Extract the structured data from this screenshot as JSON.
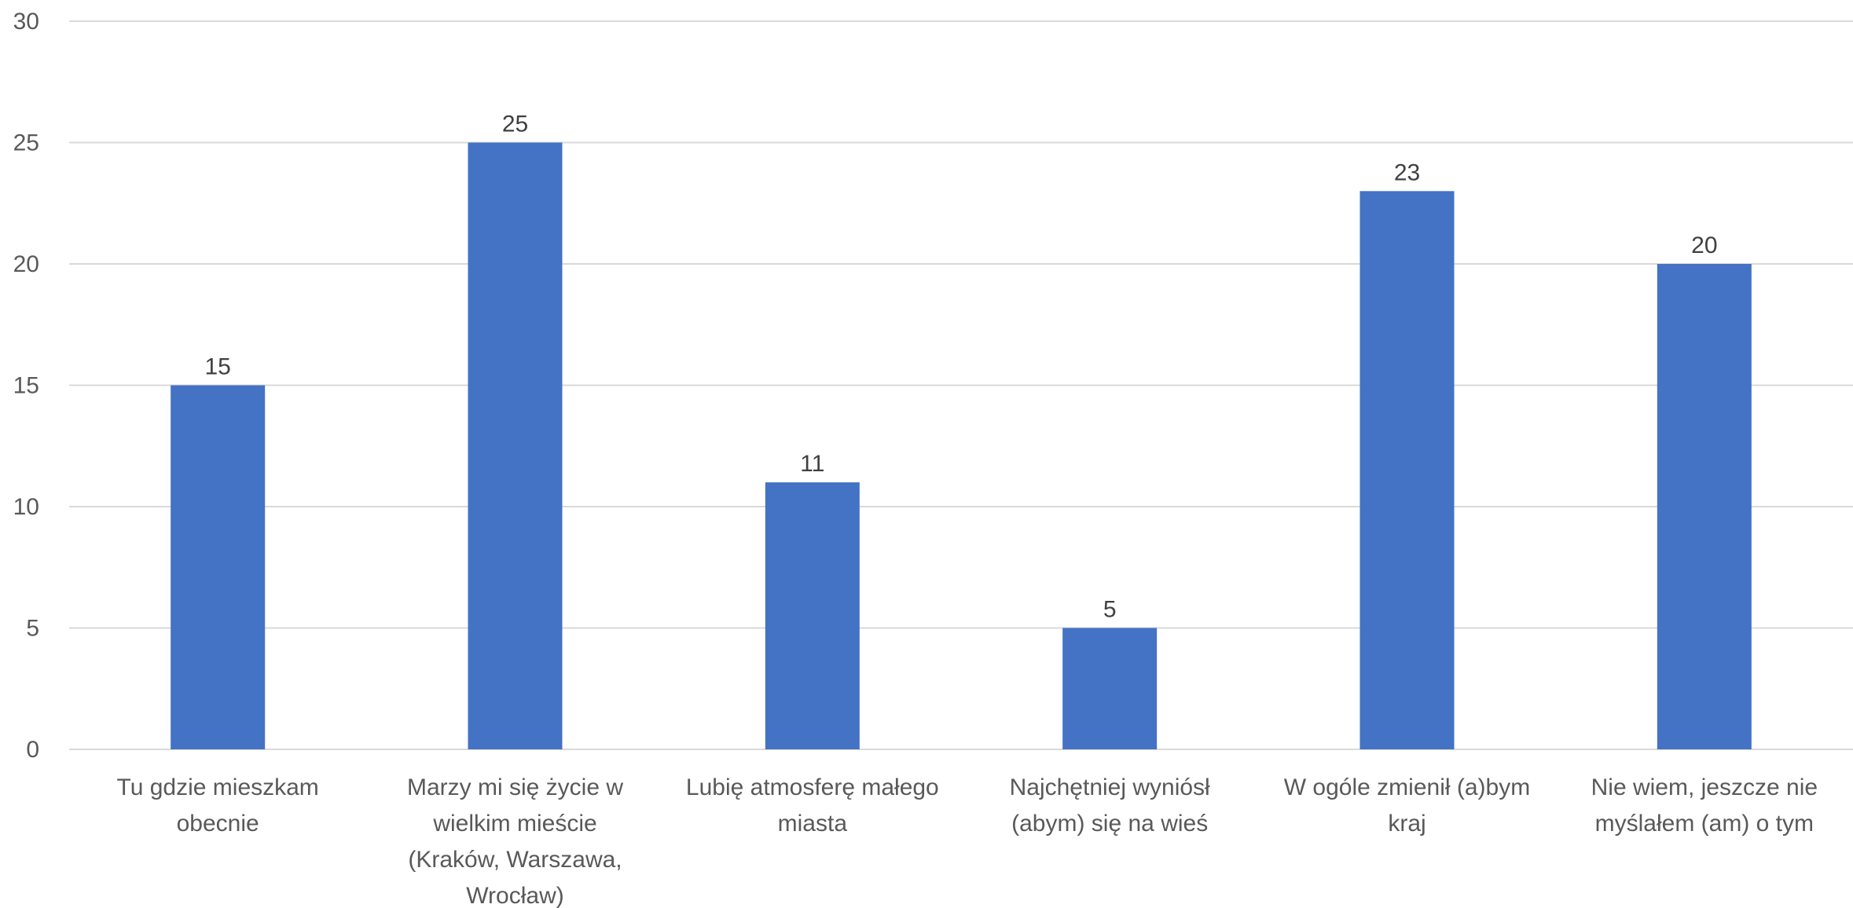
{
  "chart_data": {
    "type": "bar",
    "title": "",
    "xlabel": "",
    "ylabel": "",
    "ylim": [
      0,
      30
    ],
    "yticks": [
      0,
      5,
      10,
      15,
      20,
      25,
      30
    ],
    "grid": true,
    "legend": "none",
    "categories": [
      [
        "Tu gdzie mieszkam",
        "obecnie"
      ],
      [
        "Marzy mi się życie w",
        "wielkim mieście",
        "(Kraków, Warszawa,",
        "Wrocław)"
      ],
      [
        "Lubię atmosferę małego",
        "miasta"
      ],
      [
        "Najchętniej wyniósł",
        "(abym) się na wieś"
      ],
      [
        "W ogóle zmienił (a)bym",
        "kraj"
      ],
      [
        "Nie wiem, jeszcze nie",
        "myślałem (am) o tym"
      ]
    ],
    "values": [
      15,
      25,
      11,
      5,
      23,
      20
    ],
    "bar_color": "#4472C4"
  }
}
